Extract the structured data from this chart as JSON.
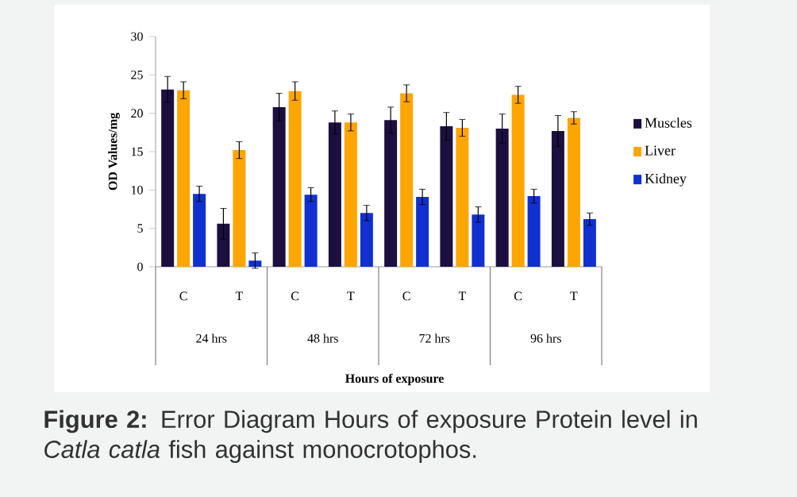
{
  "chart_data": {
    "type": "bar",
    "categories": [
      "C",
      "T",
      "C",
      "T",
      "C",
      "T",
      "C",
      "T"
    ],
    "series": [
      {
        "name": "Muscles",
        "color": "#1c0f40",
        "values": [
          23.1,
          5.6,
          20.8,
          18.8,
          19.1,
          18.3,
          18.0,
          17.7
        ],
        "errors": [
          1.7,
          2.0,
          1.8,
          1.5,
          1.7,
          1.8,
          1.9,
          2.0
        ]
      },
      {
        "name": "Liver",
        "color": "#ffa500",
        "values": [
          23.0,
          15.2,
          22.9,
          18.8,
          22.6,
          18.1,
          22.4,
          19.4
        ],
        "errors": [
          1.1,
          1.1,
          1.2,
          1.1,
          1.1,
          1.1,
          1.1,
          0.8
        ]
      },
      {
        "name": "Kidney",
        "color": "#1030d0",
        "values": [
          9.5,
          0.8,
          9.4,
          7.0,
          9.1,
          6.8,
          9.2,
          6.2
        ],
        "errors": [
          1.0,
          1.0,
          0.9,
          1.0,
          1.0,
          1.0,
          0.9,
          0.8
        ]
      }
    ],
    "ylim": [
      0,
      30
    ],
    "yticks": [
      0,
      5,
      10,
      15,
      20,
      25,
      30
    ],
    "ylabel": "OD Values/mg",
    "legend": "right",
    "annotations": [
      "24 hrs",
      "48 hrs",
      "72 hrs",
      "96 hrs",
      "Hours of exposure",
      "**Figure 2:**  Error Diagram Hours of exposure Protein level in *Catla catla* fish against monocrotophos."
    ]
  }
}
